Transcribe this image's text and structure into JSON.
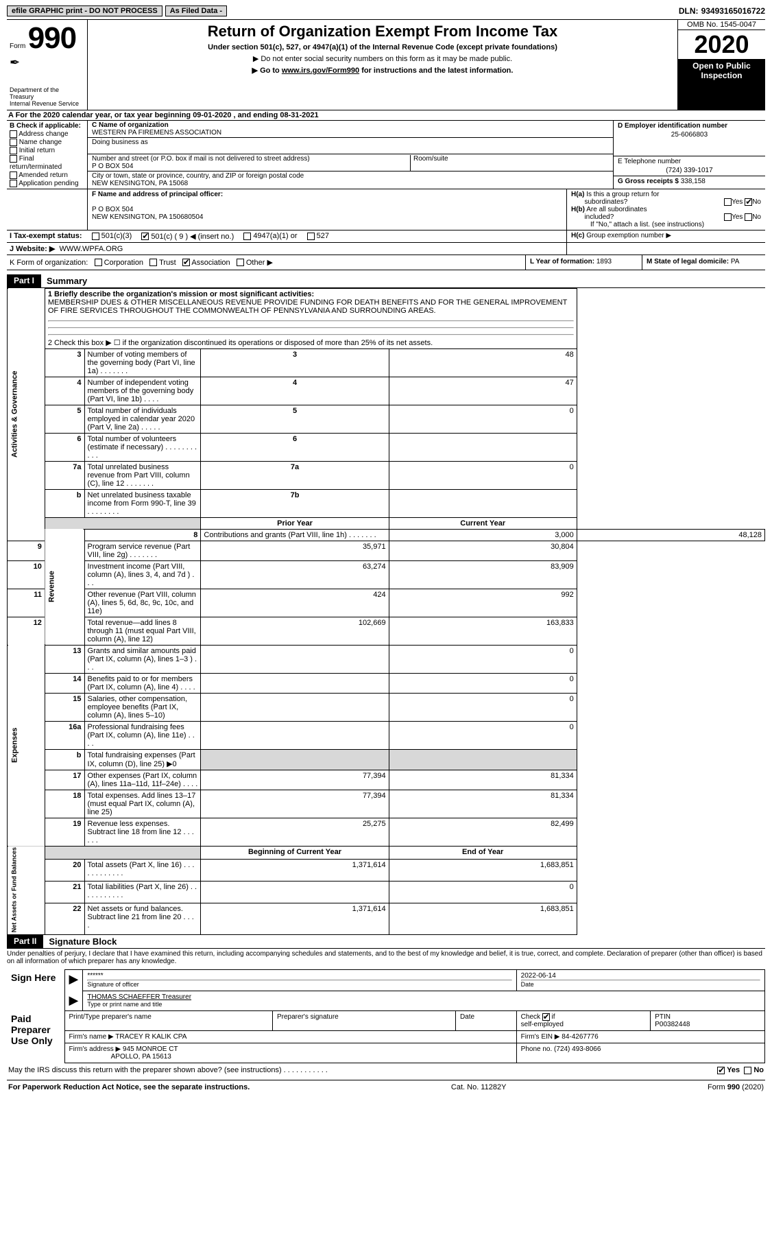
{
  "meta": {
    "top_efile": "efile GRAPHIC print - DO NOT PROCESS",
    "as_filed": "As Filed Data -",
    "dln_label": "DLN:",
    "dln": "93493165016722",
    "form_word": "Form",
    "form_num": "990",
    "dept": "Department of the Treasury\nInternal Revenue Service",
    "title": "Return of Organization Exempt From Income Tax",
    "sub1": "Under section 501(c), 527, or 4947(a)(1) of the Internal Revenue Code (except private foundations)",
    "sub2": "▶ Do not enter social security numbers on this form as it may be made public.",
    "sub3": "▶ Go to www.irs.gov/Form990 for instructions and the latest information.",
    "omb": "OMB No. 1545-0047",
    "year": "2020",
    "open": "Open to Public Inspection"
  },
  "a": {
    "text": "A  For the 2020 calendar year, or tax year beginning 09-01-2020  , and ending 08-31-2021"
  },
  "b": {
    "header": "B Check if applicable:",
    "items": [
      "Address change",
      "Name change",
      "Initial return",
      "Final return/terminated",
      "Amended return",
      "Application pending"
    ]
  },
  "c": {
    "name_lbl": "C Name of organization",
    "name": "WESTERN PA FIREMENS ASSOCIATION",
    "dba_lbl": "Doing business as",
    "street_lbl": "Number and street (or P.O. box if mail is not delivered to street address)",
    "street": "P O BOX 504",
    "room_lbl": "Room/suite",
    "city_lbl": "City or town, state or province, country, and ZIP or foreign postal code",
    "city": "NEW KENSINGTON, PA  15068"
  },
  "d": {
    "lbl": "D Employer identification number",
    "val": "25-6066803"
  },
  "e": {
    "lbl": "E Telephone number",
    "val": "(724) 339-1017"
  },
  "g": {
    "lbl": "G Gross receipts $",
    "val": "338,158"
  },
  "f": {
    "lbl": "F  Name and address of principal officer:",
    "line1": "P O BOX 504",
    "line2": "NEW KENSINGTON, PA  150680504"
  },
  "h": {
    "a": "H(a) Is this a group return for subordinates?",
    "b": "H(b) Are all subordinates included?",
    "note": "If \"No,\" attach a list. (see instructions)",
    "c": "H(c) Group exemption number ▶",
    "yes": "Yes",
    "no": "No"
  },
  "i": {
    "lbl": "I  Tax-exempt status:",
    "opt1": "501(c)(3)",
    "opt2": "501(c) ( 9 ) ◀ (insert no.)",
    "opt3": "4947(a)(1) or",
    "opt4": "527"
  },
  "j": {
    "lbl": "J  Website: ▶",
    "val": "WWW.WPFA.ORG"
  },
  "k": {
    "lbl": "K Form of organization:",
    "c": "Corporation",
    "t": "Trust",
    "a": "Association",
    "o": "Other ▶"
  },
  "l": {
    "lbl": "L Year of formation:",
    "val": "1893"
  },
  "m": {
    "lbl": "M State of legal domicile:",
    "val": "PA"
  },
  "part1": {
    "tag": "Part I",
    "title": "Summary"
  },
  "summary": {
    "line1_lbl": "1 Briefly describe the organization's mission or most significant activities:",
    "line1_txt": "MEMBERSHIP DUES & OTHER MISCELLANEOUS REVENUE PROVIDE FUNDING FOR DEATH BENEFITS AND FOR THE GENERAL IMPROVEMENT OF FIRE SERVICES THROUGHOUT THE COMMONWEALTH OF PENNSYLVANIA AND SURROUNDING AREAS.",
    "line2": "2  Check this box ▶ ☐ if the organization discontinued its operations or disposed of more than 25% of its net assets.",
    "rows_top": [
      {
        "n": "3",
        "t": "Number of voting members of the governing body (Part VI, line 1a)  .    .    .    .    .    .    .",
        "rn": "3",
        "v": "48"
      },
      {
        "n": "4",
        "t": "Number of independent voting members of the governing body (Part VI, line 1b)  .    .    .    .",
        "rn": "4",
        "v": "47"
      },
      {
        "n": "5",
        "t": "Total number of individuals employed in calendar year 2020 (Part V, line 2a)  .    .    .    .    .",
        "rn": "5",
        "v": "0"
      },
      {
        "n": "6",
        "t": "Total number of volunteers (estimate if necessary)  .    .    .    .    .    .    .    .    .    .    .",
        "rn": "6",
        "v": ""
      },
      {
        "n": "7a",
        "t": "Total unrelated business revenue from Part VIII, column (C), line 12  .    .    .    .    .    .    .",
        "rn": "7a",
        "v": "0"
      },
      {
        "n": "b",
        "t": "Net unrelated business taxable income from Form 990-T, line 39  .    .    .    .    .    .    .    .",
        "rn": "7b",
        "v": ""
      }
    ],
    "py_hdr": "Prior Year",
    "cy_hdr": "Current Year",
    "rev_side": "Revenue",
    "rev_rows": [
      {
        "n": "8",
        "t": "Contributions and grants (Part VIII, line 1h)  .    .    .    .    .    .    .",
        "py": "3,000",
        "cy": "48,128"
      },
      {
        "n": "9",
        "t": "Program service revenue (Part VIII, line 2g)  .    .    .    .    .    .    .",
        "py": "35,971",
        "cy": "30,804"
      },
      {
        "n": "10",
        "t": "Investment income (Part VIII, column (A), lines 3, 4, and 7d )  .    .    .",
        "py": "63,274",
        "cy": "83,909"
      },
      {
        "n": "11",
        "t": "Other revenue (Part VIII, column (A), lines 5, 6d, 8c, 9c, 10c, and 11e)",
        "py": "424",
        "cy": "992"
      },
      {
        "n": "12",
        "t": "Total revenue—add lines 8 through 11 (must equal Part VIII, column (A), line 12)",
        "py": "102,669",
        "cy": "163,833"
      }
    ],
    "exp_side": "Expenses",
    "exp_rows": [
      {
        "n": "13",
        "t": "Grants and similar amounts paid (Part IX, column (A), lines 1–3 )  .    .    .",
        "py": "",
        "cy": "0"
      },
      {
        "n": "14",
        "t": "Benefits paid to or for members (Part IX, column (A), line 4)  .    .    .    .",
        "py": "",
        "cy": "0"
      },
      {
        "n": "15",
        "t": "Salaries, other compensation, employee benefits (Part IX, column (A), lines 5–10)",
        "py": "",
        "cy": "0"
      },
      {
        "n": "16a",
        "t": "Professional fundraising fees (Part IX, column (A), line 11e)  .    .    .    .",
        "py": "",
        "cy": "0"
      },
      {
        "n": "b",
        "t": "Total fundraising expenses (Part IX, column (D), line 25) ▶0",
        "py": "SHADE",
        "cy": "SHADE"
      },
      {
        "n": "17",
        "t": "Other expenses (Part IX, column (A), lines 11a–11d, 11f–24e)  .    .    .    .",
        "py": "77,394",
        "cy": "81,334"
      },
      {
        "n": "18",
        "t": "Total expenses. Add lines 13–17 (must equal Part IX, column (A), line 25)",
        "py": "77,394",
        "cy": "81,334"
      },
      {
        "n": "19",
        "t": "Revenue less expenses. Subtract line 18 from line 12  .    .    .    .    .    .",
        "py": "25,275",
        "cy": "82,499"
      }
    ],
    "na_side": "Net Assets or Fund Balances",
    "bcy_hdr": "Beginning of Current Year",
    "eoy_hdr": "End of Year",
    "na_rows": [
      {
        "n": "20",
        "t": "Total assets (Part X, line 16)  .    .    .    .    .    .    .    .    .    .    .    .",
        "py": "1,371,614",
        "cy": "1,683,851"
      },
      {
        "n": "21",
        "t": "Total liabilities (Part X, line 26)  .    .    .    .    .    .    .    .    .    .    .",
        "py": "",
        "cy": "0"
      },
      {
        "n": "22",
        "t": "Net assets or fund balances. Subtract line 21 from line 20  .    .    .    .",
        "py": "1,371,614",
        "cy": "1,683,851"
      }
    ],
    "ag_side": "Activities & Governance"
  },
  "part2": {
    "tag": "Part II",
    "title": "Signature Block"
  },
  "sig": {
    "penalty": "Under penalties of perjury, I declare that I have examined this return, including accompanying schedules and statements, and to the best of my knowledge and belief, it is true, correct, and complete. Declaration of preparer (other than officer) is based on all information of which preparer has any knowledge.",
    "sign_here": "Sign Here",
    "stars": "******",
    "sig_officer": "Signature of officer",
    "date": "2022-06-14",
    "date_lbl": "Date",
    "officer_name": "THOMAS SCHAEFFER Treasurer",
    "type_name": "Type or print name and title",
    "paid_prep": "Paid Preparer Use Only",
    "print_name_lbl": "Print/Type preparer's name",
    "prep_sig_lbl": "Preparer's signature",
    "prep_date_lbl": "Date",
    "self_emp": "Check ☑ if self-employed",
    "ptin_lbl": "PTIN",
    "ptin": "P00382448",
    "firm_name_lbl": "Firm's name    ▶",
    "firm_name": "TRACEY R KALIK CPA",
    "firm_ein_lbl": "Firm's EIN ▶",
    "firm_ein": "84-4267776",
    "firm_addr_lbl": "Firm's address ▶",
    "firm_addr1": "945 MONROE CT",
    "firm_addr2": "APOLLO, PA  15613",
    "phone_lbl": "Phone no.",
    "phone": "(724) 493-8066"
  },
  "foot": {
    "discuss": "May the IRS discuss this return with the preparer shown above? (see instructions)   .    .    .    .    .    .    .    .    .    .    .",
    "pra": "For Paperwork Reduction Act Notice, see the separate instructions.",
    "cat": "Cat. No. 11282Y",
    "form": "Form 990 (2020)"
  },
  "colors": {
    "black": "#000000",
    "white": "#ffffff",
    "shade": "#d8d8d8"
  }
}
